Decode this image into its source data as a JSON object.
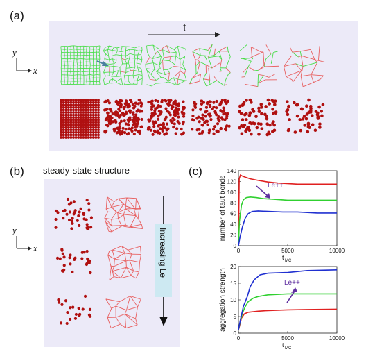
{
  "panel_a": {
    "label": "(a)",
    "time_label": "t",
    "axis_y": "y",
    "axis_x": "x"
  },
  "panel_b": {
    "label": "(b)",
    "heading": "steady-state structure",
    "increasing_label": "Increasing Le",
    "axis_y": "y",
    "axis_x": "x"
  },
  "panel_c": {
    "label": "(c)"
  },
  "colors": {
    "panel_bg": "#eceaf8",
    "bond_green": "#44dd44",
    "bond_red": "#e86060",
    "particle": "#b01010",
    "arrow_blue": "#4a7fa0",
    "label_box": "#cde9f2",
    "annot": "#6030a0"
  },
  "chart_data": [
    {
      "type": "line",
      "ylabel": "number of taut bonds",
      "xlabel_main": "t",
      "xlabel_sub": "MC",
      "xlim": [
        0,
        10000
      ],
      "ylim": [
        0,
        140
      ],
      "xticks": [
        "0",
        "5000",
        "10000"
      ],
      "yticks": [
        "0",
        "20",
        "40",
        "60",
        "80",
        "100",
        "120",
        "140"
      ],
      "annotation": "Le++",
      "series": [
        {
          "color": "#e02020",
          "x": [
            0,
            80,
            200,
            400,
            700,
            1200,
            2000,
            3000,
            4000,
            6000,
            8000,
            10000
          ],
          "y": [
            0,
            125,
            132,
            130,
            128,
            125,
            122,
            119,
            117,
            115,
            115,
            115
          ]
        },
        {
          "color": "#30d030",
          "x": [
            0,
            100,
            300,
            500,
            800,
            1200,
            1800,
            2500,
            3500,
            5000,
            7000,
            10000
          ],
          "y": [
            0,
            45,
            75,
            86,
            90,
            91,
            90,
            88,
            87,
            85,
            85,
            85
          ]
        },
        {
          "color": "#2030d0",
          "x": [
            0,
            150,
            400,
            700,
            1000,
            1400,
            2000,
            3000,
            4500,
            6000,
            8000,
            10000
          ],
          "y": [
            0,
            15,
            35,
            52,
            60,
            64,
            65,
            64,
            63,
            63,
            61,
            61
          ]
        }
      ]
    },
    {
      "type": "line",
      "ylabel": "aggregation strength",
      "xlabel_main": "t",
      "xlabel_sub": "MC",
      "xlim": [
        0,
        10000
      ],
      "ylim": [
        0,
        20
      ],
      "xticks": [
        "0",
        "5000",
        "10000"
      ],
      "yticks": [
        "0",
        "5",
        "10",
        "15",
        "20"
      ],
      "annotation": "Le++",
      "series": [
        {
          "color": "#e02020",
          "x": [
            0,
            100,
            300,
            600,
            1000,
            2000,
            3000,
            5000,
            7000,
            10000
          ],
          "y": [
            1,
            2,
            4.5,
            5.8,
            6.3,
            6.6,
            6.8,
            7.0,
            7.1,
            7.2
          ]
        },
        {
          "color": "#30d030",
          "x": [
            0,
            150,
            400,
            700,
            1000,
            1500,
            2000,
            3000,
            5000,
            7000,
            10000
          ],
          "y": [
            1,
            3,
            6,
            8,
            9.5,
            10.5,
            11,
            11.5,
            11.8,
            11.8,
            11.8
          ]
        },
        {
          "color": "#2030d0",
          "x": [
            0,
            200,
            500,
            900,
            1200,
            1600,
            2200,
            3000,
            5000,
            7000,
            10000
          ],
          "y": [
            1,
            4,
            8,
            11,
            14,
            16,
            17.5,
            18,
            18.2,
            18.8,
            19
          ]
        }
      ]
    }
  ]
}
